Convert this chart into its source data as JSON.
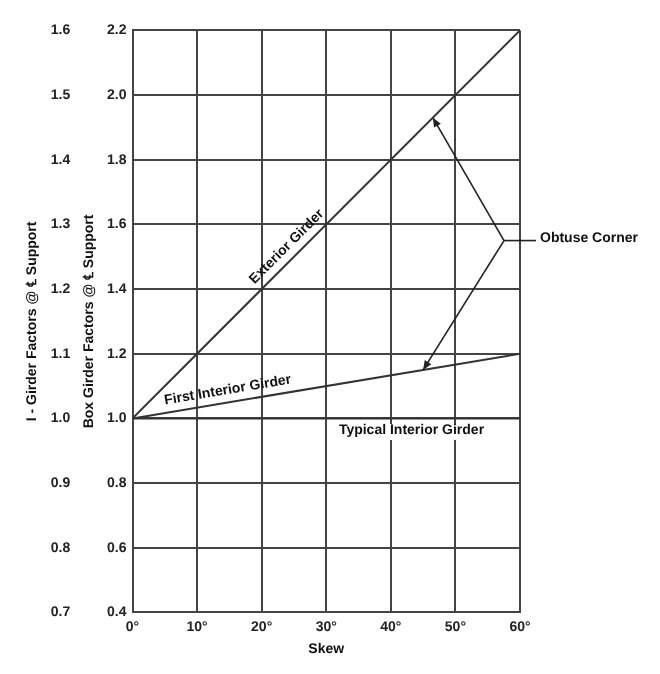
{
  "chart_data": {
    "type": "line",
    "xlabel": "Skew",
    "ylabel": "Box Girder Factors @ ℄ Support",
    "y2label": "I - Girder Factors @ ℄ Support",
    "x": [
      0,
      60
    ],
    "series": [
      {
        "name": "Exterior Girder",
        "color": "#333333",
        "values": [
          1.0,
          2.2
        ]
      },
      {
        "name": "First Interior Girder",
        "color": "#333333",
        "values": [
          1.0,
          1.2
        ]
      },
      {
        "name": "Typical Interior Girder",
        "color": "#333333",
        "values": [
          1.0,
          1.0
        ]
      }
    ],
    "xlim": [
      0,
      60
    ],
    "xticks": [
      {
        "value": 0,
        "label": "0°"
      },
      {
        "value": 10,
        "label": "10°"
      },
      {
        "value": 20,
        "label": "20°"
      },
      {
        "value": 30,
        "label": "30°"
      },
      {
        "value": 40,
        "label": "40°"
      },
      {
        "value": 50,
        "label": "50°"
      },
      {
        "value": 60,
        "label": "60°"
      }
    ],
    "ylim": [
      0.4,
      2.2
    ],
    "yticks": [
      {
        "value": 0.4,
        "label": "0.4"
      },
      {
        "value": 0.6,
        "label": "0.6"
      },
      {
        "value": 0.8,
        "label": "0.8"
      },
      {
        "value": 1.0,
        "label": "1.0"
      },
      {
        "value": 1.2,
        "label": "1.2"
      },
      {
        "value": 1.4,
        "label": "1.4"
      },
      {
        "value": 1.6,
        "label": "1.6"
      },
      {
        "value": 1.8,
        "label": "1.8"
      },
      {
        "value": 2.0,
        "label": "2.0"
      },
      {
        "value": 2.2,
        "label": "2.2"
      }
    ],
    "y2lim": [
      0.7,
      1.6
    ],
    "y2ticks": [
      {
        "value": 0.7,
        "label": "0.7"
      },
      {
        "value": 0.8,
        "label": "0.8"
      },
      {
        "value": 0.9,
        "label": "0.9"
      },
      {
        "value": 1.0,
        "label": "1.0"
      },
      {
        "value": 1.1,
        "label": "1.1"
      },
      {
        "value": 1.2,
        "label": "1.2"
      },
      {
        "value": 1.3,
        "label": "1.3"
      },
      {
        "value": 1.4,
        "label": "1.4"
      },
      {
        "value": 1.5,
        "label": "1.5"
      },
      {
        "value": 1.6,
        "label": "1.6"
      }
    ],
    "annotations": [
      "Obtuse Corner"
    ],
    "grid": true,
    "legend": false,
    "marker": "none",
    "line_style": "solid"
  }
}
